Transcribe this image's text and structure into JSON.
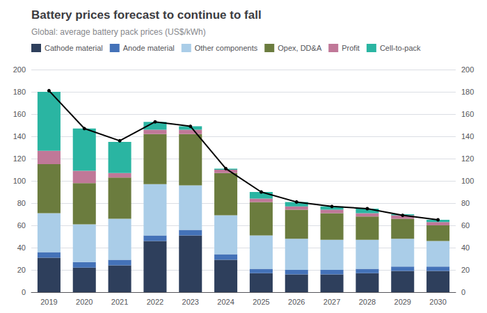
{
  "chart_data": {
    "type": "bar",
    "stacked": true,
    "title": "Battery prices forecast to continue to fall",
    "subtitle": "Global: average battery pack prices (US$/kWh)",
    "categories": [
      "2019",
      "2020",
      "2021",
      "2022",
      "2023",
      "2024",
      "2025",
      "2026",
      "2027",
      "2028",
      "2029",
      "2030"
    ],
    "series": [
      {
        "name": "Cathode material",
        "color": "#2e3f5c",
        "values": [
          31,
          22,
          24,
          46,
          51,
          29,
          17,
          16,
          16,
          17,
          19,
          19
        ]
      },
      {
        "name": "Anode material",
        "color": "#4472b8",
        "values": [
          5,
          5,
          5,
          5,
          5,
          5,
          4,
          4,
          4,
          4,
          4,
          4
        ]
      },
      {
        "name": "Other components",
        "color": "#aacde8",
        "values": [
          35,
          34,
          37,
          46,
          40,
          35,
          30,
          28,
          27,
          26,
          25,
          23
        ]
      },
      {
        "name": "Opex, DD&A",
        "color": "#6b7c3e",
        "values": [
          44,
          37,
          37,
          45,
          46,
          38,
          30,
          26,
          24,
          21,
          18,
          14
        ]
      },
      {
        "name": "Profit",
        "color": "#c07898",
        "values": [
          12,
          11,
          4,
          4,
          4,
          3,
          3,
          3,
          3,
          3,
          3,
          3
        ]
      },
      {
        "name": "Cell-to-pack",
        "color": "#2ab5a2",
        "values": [
          53,
          38,
          28,
          7,
          3,
          1,
          6,
          4,
          3,
          4,
          1,
          2
        ]
      },
      {
        "type": "line",
        "color": "#000000",
        "marker": "circle",
        "values": [
          181,
          147,
          136,
          153,
          149,
          111,
          90,
          81,
          77,
          75,
          69,
          65
        ]
      }
    ],
    "ylim": [
      0,
      200
    ],
    "yticks": [
      0,
      20,
      40,
      60,
      80,
      100,
      120,
      140,
      160,
      180,
      200
    ],
    "y2lim": [
      0,
      200
    ],
    "y2ticks": [
      0,
      20,
      40,
      60,
      80,
      100,
      120,
      140,
      160,
      180,
      200
    ],
    "grid": true,
    "legend": "upper left"
  }
}
